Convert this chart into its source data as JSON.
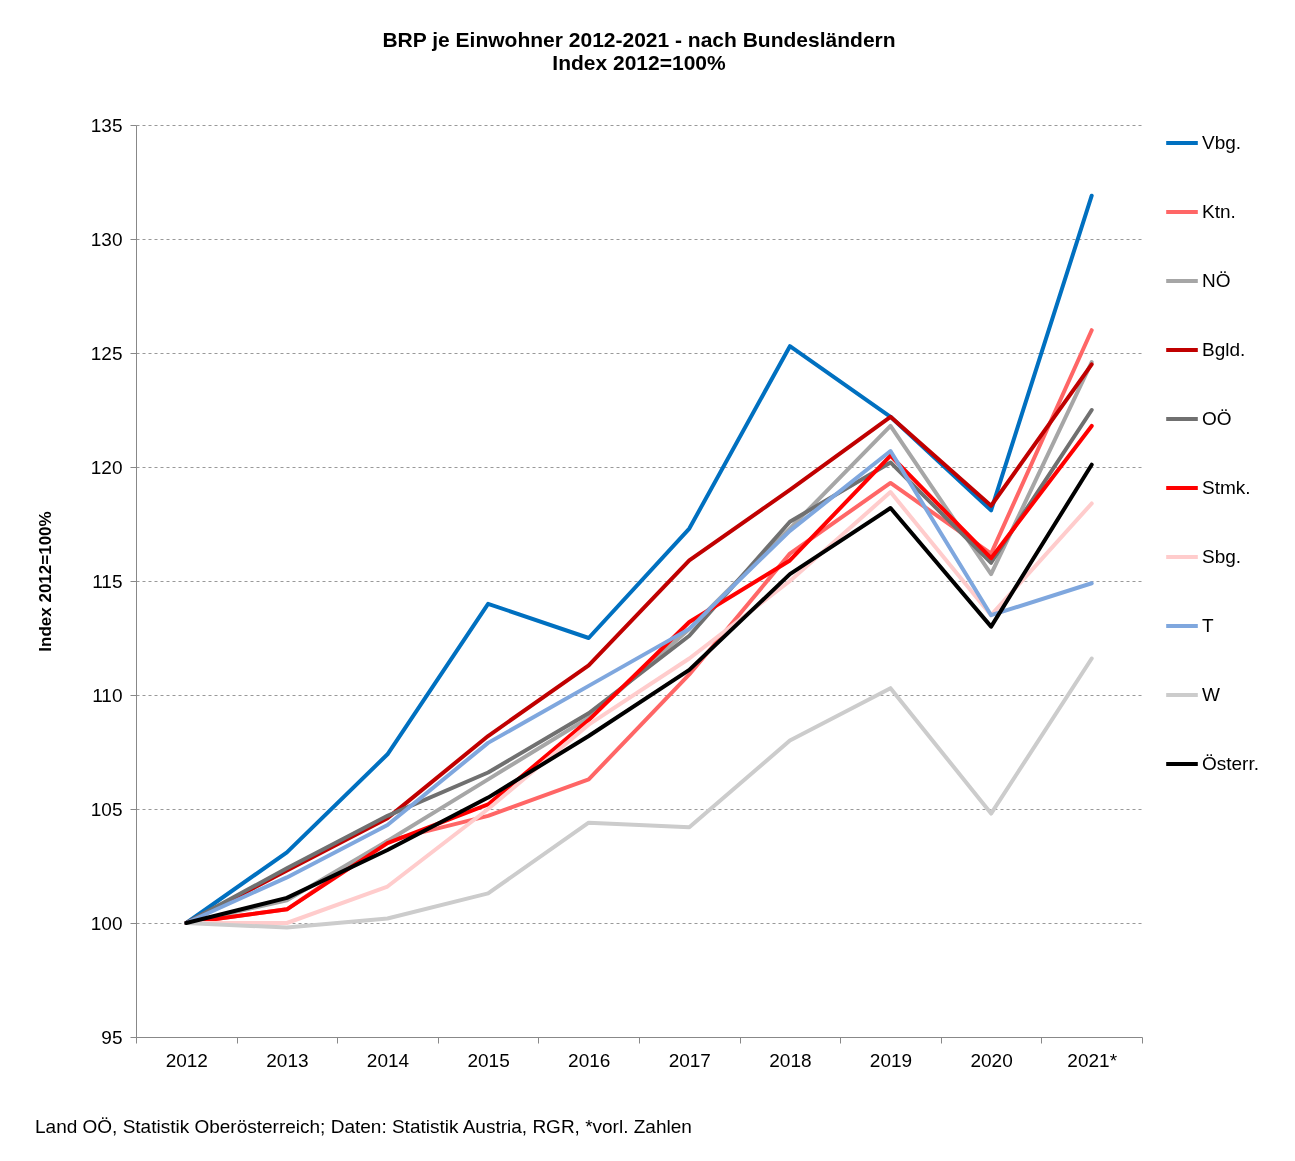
{
  "chart_data": {
    "type": "line",
    "title": "BRP je Einwohner 2012-2021 - nach Bundesländern",
    "subtitle": "Index 2012=100%",
    "ylabel": "Index 2012=100%",
    "categories": [
      "2012",
      "2013",
      "2014",
      "2015",
      "2016",
      "2017",
      "2018",
      "2019",
      "2020",
      "2021*"
    ],
    "ylim": [
      95,
      135
    ],
    "yticks": [
      95,
      100,
      105,
      110,
      115,
      120,
      125,
      130,
      135
    ],
    "grid": "y",
    "legend": "right",
    "marker": "none",
    "line_style": "solid",
    "series": [
      {
        "name": "Vbg.",
        "color": "#0070c0",
        "values": [
          100,
          103.1,
          107.4,
          114.0,
          112.5,
          117.3,
          125.3,
          122.2,
          118.1,
          131.9
        ]
      },
      {
        "name": "Ktn.",
        "color": "#ff6666",
        "values": [
          100,
          100.6,
          103.6,
          104.7,
          106.3,
          110.9,
          116.2,
          119.3,
          116.2,
          126.0
        ]
      },
      {
        "name": "NÖ",
        "color": "#a6a6a6",
        "values": [
          100,
          101.0,
          103.6,
          106.3,
          109.0,
          112.9,
          117.3,
          121.8,
          115.3,
          124.6
        ]
      },
      {
        "name": "Bgld.",
        "color": "#c00000",
        "values": [
          100,
          102.3,
          104.6,
          108.2,
          111.3,
          115.9,
          119.0,
          122.2,
          118.3,
          124.5
        ]
      },
      {
        "name": "OÖ",
        "color": "#707070",
        "values": [
          100,
          102.4,
          104.7,
          106.6,
          109.2,
          112.6,
          117.6,
          120.2,
          115.8,
          122.5
        ]
      },
      {
        "name": "Stmk.",
        "color": "#ff0000",
        "values": [
          100,
          100.6,
          103.5,
          105.2,
          108.9,
          113.2,
          115.9,
          120.5,
          116.0,
          121.8
        ]
      },
      {
        "name": "Sbg.",
        "color": "#ffcccc",
        "values": [
          100,
          100.0,
          101.6,
          105.0,
          108.7,
          111.6,
          115.0,
          118.9,
          113.5,
          118.4
        ]
      },
      {
        "name": "T",
        "color": "#7fa7de",
        "values": [
          100,
          102.0,
          104.3,
          107.9,
          110.4,
          112.9,
          117.2,
          120.7,
          113.5,
          114.9
        ]
      },
      {
        "name": "W",
        "color": "#cccccc",
        "values": [
          100,
          99.8,
          100.2,
          101.3,
          104.4,
          104.2,
          108.0,
          110.3,
          104.8,
          111.6
        ]
      },
      {
        "name": "Österr.",
        "color": "#000000",
        "values": [
          100,
          101.1,
          103.2,
          105.5,
          108.2,
          111.1,
          115.3,
          118.2,
          113.0,
          120.1
        ]
      }
    ],
    "annotations": [
      "Land OÖ, Statistik Oberösterreich; Daten: Statistik Austria, RGR, *vorl. Zahlen"
    ]
  }
}
